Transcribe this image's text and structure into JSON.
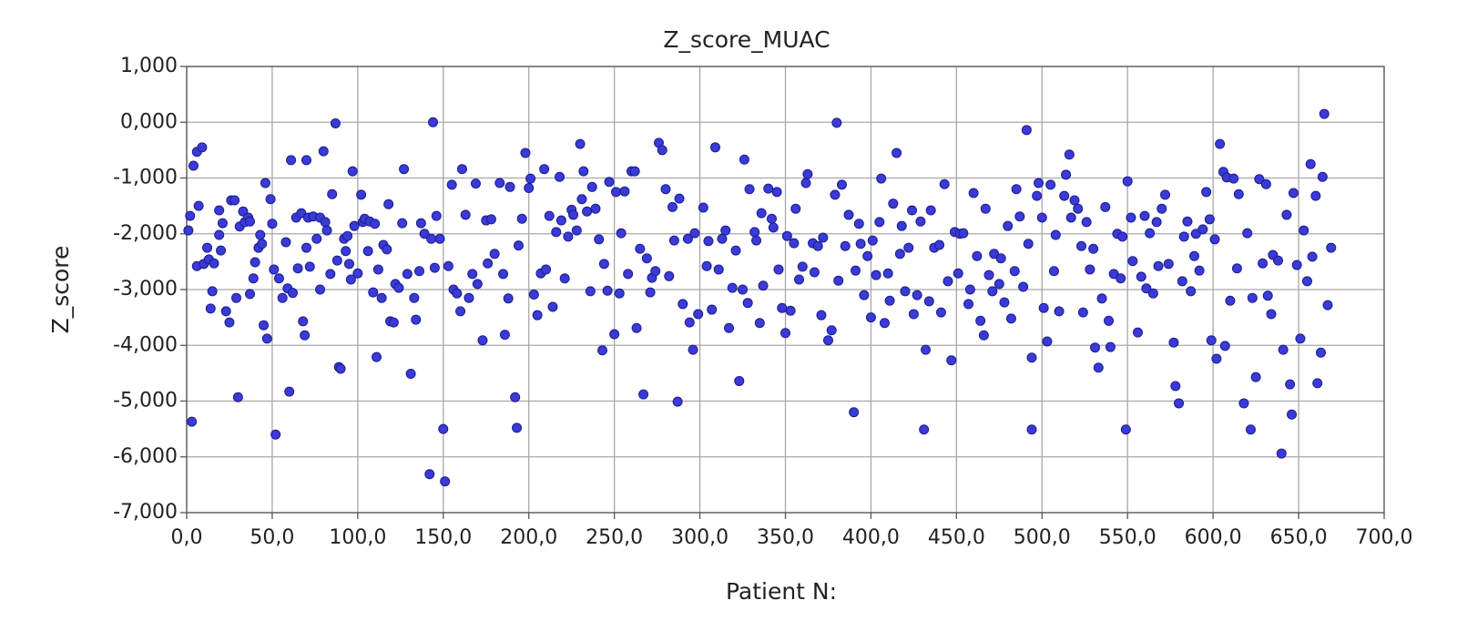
{
  "chart_data": {
    "type": "scatter",
    "title": "Z_score_MUAC",
    "x_label": "Patient N:",
    "y_label": "Z_score",
    "color": "#3a3ad6",
    "grid": true,
    "xlim": [
      0,
      700
    ],
    "ylim": [
      -7,
      1
    ],
    "xticks": [
      {
        "value": 0,
        "label": "0,0"
      },
      {
        "value": 50,
        "label": "50,0"
      },
      {
        "value": 100,
        "label": "100,0"
      },
      {
        "value": 150,
        "label": "150,0"
      },
      {
        "value": 200,
        "label": "200,0"
      },
      {
        "value": 250,
        "label": "250,0"
      },
      {
        "value": 300,
        "label": "300,0"
      },
      {
        "value": 350,
        "label": "350,0"
      },
      {
        "value": 400,
        "label": "400,0"
      },
      {
        "value": 450,
        "label": "450,0"
      },
      {
        "value": 500,
        "label": "500,0"
      },
      {
        "value": 550,
        "label": "550,0"
      },
      {
        "value": 600,
        "label": "600,0"
      },
      {
        "value": 650,
        "label": "650,0"
      },
      {
        "value": 700,
        "label": "700,0"
      }
    ],
    "yticks": [
      {
        "value": 1,
        "label": "1,000"
      },
      {
        "value": 0,
        "label": "0,000"
      },
      {
        "value": -1,
        "label": "-1,000"
      },
      {
        "value": -2,
        "label": "-2,000"
      },
      {
        "value": -3,
        "label": "-3,000"
      },
      {
        "value": -4,
        "label": "-4,000"
      },
      {
        "value": -5,
        "label": "-5,000"
      },
      {
        "value": -6,
        "label": "-6,000"
      },
      {
        "value": -7,
        "label": "-7,000"
      }
    ],
    "x": [
      3,
      4,
      6,
      9,
      1,
      2,
      7,
      6,
      10,
      12,
      13,
      14,
      15,
      16,
      19,
      19,
      21,
      20,
      23,
      26,
      25,
      28,
      29,
      30,
      31,
      33,
      34,
      36,
      37,
      37,
      39,
      40,
      42,
      43,
      44,
      45,
      46,
      47,
      49,
      50,
      51,
      52,
      54,
      56,
      58,
      59,
      60,
      61,
      62,
      64,
      65,
      67,
      68,
      69,
      70,
      70,
      71,
      72,
      74,
      76,
      78,
      78,
      80,
      81,
      82,
      84,
      85,
      87,
      88,
      89,
      90,
      92,
      93,
      94,
      95,
      96,
      97,
      98,
      100,
      102,
      103,
      104,
      106,
      107,
      109,
      110,
      111,
      112,
      114,
      115,
      117,
      118,
      119,
      121,
      122,
      124,
      126,
      127,
      129,
      131,
      133,
      134,
      136,
      137,
      139,
      142,
      143,
      144,
      145,
      146,
      148,
      150,
      151,
      153,
      155,
      156,
      158,
      160,
      161,
      163,
      165,
      167,
      169,
      170,
      173,
      175,
      176,
      178,
      180,
      183,
      185,
      186,
      188,
      189,
      192,
      193,
      194,
      196,
      198,
      200,
      201,
      203,
      205,
      207,
      209,
      210,
      212,
      214,
      216,
      218,
      219,
      221,
      223,
      225,
      226,
      228,
      230,
      231,
      232,
      234,
      236,
      237,
      239,
      241,
      243,
      244,
      246,
      247,
      250,
      251,
      253,
      254,
      256,
      258,
      260,
      262,
      263,
      265,
      267,
      269,
      271,
      272,
      274,
      276,
      278,
      280,
      282,
      284,
      285,
      287,
      288,
      290,
      293,
      294,
      296,
      297,
      299,
      302,
      304,
      305,
      307,
      309,
      311,
      313,
      315,
      317,
      319,
      321,
      323,
      325,
      326,
      328,
      329,
      332,
      333,
      335,
      336,
      337,
      340,
      342,
      343,
      345,
      346,
      348,
      350,
      351,
      353,
      355,
      356,
      358,
      360,
      362,
      363,
      366,
      367,
      369,
      371,
      372,
      375,
      377,
      379,
      380,
      381,
      383,
      385,
      387,
      390,
      391,
      393,
      394,
      396,
      398,
      400,
      401,
      403,
      405,
      406,
      408,
      410,
      411,
      413,
      415,
      417,
      418,
      420,
      422,
      424,
      425,
      427,
      429,
      431,
      432,
      434,
      435,
      437,
      440,
      441,
      443,
      445,
      447,
      449,
      451,
      452,
      454,
      457,
      458,
      460,
      462,
      464,
      466,
      467,
      469,
      471,
      472,
      475,
      476,
      478,
      480,
      482,
      484,
      485,
      487,
      489,
      491,
      492,
      494,
      494,
      497,
      498,
      500,
      501,
      503,
      505,
      507,
      508,
      510,
      513,
      514,
      516,
      517,
      519,
      521,
      523,
      524,
      526,
      528,
      530,
      531,
      533,
      535,
      537,
      539,
      540,
      542,
      544,
      546,
      547,
      549,
      550,
      552,
      553,
      556,
      558,
      560,
      561,
      563,
      565,
      567,
      568,
      570,
      572,
      574,
      577,
      578,
      580,
      582,
      583,
      585,
      587,
      589,
      590,
      592,
      594,
      596,
      598,
      599,
      601,
      602,
      604,
      606,
      607,
      608,
      610,
      612,
      614,
      615,
      618,
      620,
      622,
      623,
      625,
      627,
      629,
      631,
      632,
      634,
      635,
      638,
      640,
      641,
      643,
      645,
      646,
      647,
      649,
      651,
      653,
      655,
      657,
      658,
      660,
      661,
      663,
      664,
      665,
      667,
      669
    ],
    "values": [
      -5.37,
      -0.78,
      -0.53,
      -0.45,
      -1.94,
      -1.68,
      -1.5,
      -2.58,
      -2.54,
      -2.25,
      -2.46,
      -3.34,
      -3.03,
      -2.53,
      -2.02,
      -1.58,
      -1.81,
      -2.3,
      -3.39,
      -1.4,
      -3.59,
      -1.4,
      -3.15,
      -4.93,
      -1.87,
      -1.6,
      -1.79,
      -1.71,
      -1.78,
      -3.08,
      -2.8,
      -2.51,
      -2.25,
      -2.02,
      -2.18,
      -3.64,
      -1.09,
      -3.88,
      -1.38,
      -1.82,
      -2.64,
      -5.6,
      -2.8,
      -3.15,
      -2.15,
      -2.98,
      -4.83,
      -0.68,
      -3.06,
      -1.71,
      -2.62,
      -1.63,
      -3.57,
      -3.82,
      -0.68,
      -2.25,
      -1.71,
      -2.59,
      -1.69,
      -2.09,
      -1.71,
      -3.0,
      -0.52,
      -1.79,
      -1.94,
      -2.72,
      -1.29,
      -0.02,
      -2.48,
      -4.39,
      -4.42,
      -2.09,
      -2.31,
      -2.04,
      -2.54,
      -2.82,
      -0.88,
      -1.86,
      -2.71,
      -1.3,
      -1.79,
      -1.73,
      -2.31,
      -1.78,
      -3.05,
      -1.82,
      -4.21,
      -2.64,
      -3.15,
      -2.2,
      -2.28,
      -1.47,
      -3.57,
      -3.59,
      -2.9,
      -2.97,
      -1.81,
      -0.84,
      -2.72,
      -4.51,
      -3.15,
      -3.54,
      -2.67,
      -1.81,
      -2.0,
      -6.31,
      -2.09,
      0.0,
      -2.61,
      -1.68,
      -2.09,
      -5.5,
      -6.44,
      -2.58,
      -1.12,
      -3.0,
      -3.07,
      -3.39,
      -0.84,
      -1.66,
      -3.15,
      -2.72,
      -1.1,
      -2.9,
      -3.91,
      -1.76,
      -2.53,
      -1.74,
      -2.36,
      -1.09,
      -2.72,
      -3.81,
      -3.16,
      -1.16,
      -4.93,
      -5.48,
      -2.21,
      -1.73,
      -0.55,
      -1.18,
      -1.01,
      -3.09,
      -3.46,
      -2.71,
      -0.84,
      -2.64,
      -1.68,
      -3.31,
      -1.97,
      -0.98,
      -1.76,
      -2.8,
      -2.05,
      -1.57,
      -1.66,
      -1.94,
      -0.39,
      -1.38,
      -0.88,
      -1.6,
      -3.03,
      -1.16,
      -1.55,
      -2.1,
      -4.09,
      -2.54,
      -3.02,
      -1.07,
      -3.8,
      -1.25,
      -3.07,
      -1.99,
      -1.24,
      -2.72,
      -0.88,
      -0.88,
      -3.69,
      -2.27,
      -4.88,
      -2.44,
      -3.05,
      -2.79,
      -2.67,
      -0.37,
      -0.5,
      -1.2,
      -2.76,
      -1.52,
      -2.12,
      -5.01,
      -1.37,
      -3.26,
      -2.09,
      -3.59,
      -4.08,
      -1.99,
      -3.44,
      -1.53,
      -2.58,
      -2.13,
      -3.36,
      -0.45,
      -2.64,
      -2.09,
      -1.94,
      -3.69,
      -2.97,
      -2.3,
      -4.64,
      -3.0,
      -0.67,
      -3.24,
      -1.2,
      -1.97,
      -2.12,
      -3.6,
      -1.63,
      -2.93,
      -1.19,
      -1.73,
      -1.89,
      -1.25,
      -2.64,
      -3.33,
      -3.78,
      -2.04,
      -3.38,
      -2.17,
      -1.55,
      -2.82,
      -2.59,
      -1.09,
      -0.93,
      -2.17,
      -2.69,
      -2.22,
      -3.46,
      -2.07,
      -3.91,
      -3.73,
      -1.3,
      -0.01,
      -2.84,
      -1.12,
      -2.22,
      -1.66,
      -5.2,
      -2.66,
      -1.82,
      -2.18,
      -3.1,
      -2.4,
      -3.5,
      -2.12,
      -2.74,
      -1.79,
      -1.01,
      -3.6,
      -2.71,
      -3.2,
      -1.46,
      -0.55,
      -2.36,
      -1.86,
      -3.03,
      -2.25,
      -1.58,
      -3.44,
      -3.1,
      -1.78,
      -5.51,
      -4.08,
      -3.21,
      -1.58,
      -2.25,
      -2.2,
      -3.41,
      -1.11,
      -2.85,
      -4.27,
      -1.97,
      -2.71,
      -2.0,
      -1.99,
      -3.26,
      -3.0,
      -1.27,
      -2.4,
      -3.56,
      -3.82,
      -1.55,
      -2.74,
      -3.03,
      -2.36,
      -2.9,
      -2.44,
      -3.23,
      -1.86,
      -3.52,
      -2.67,
      -1.2,
      -1.69,
      -2.95,
      -0.14,
      -2.18,
      -4.22,
      -5.51,
      -1.32,
      -1.09,
      -1.71,
      -3.33,
      -3.93,
      -1.12,
      -2.67,
      -2.02,
      -3.39,
      -1.32,
      -0.94,
      -0.58,
      -1.71,
      -1.4,
      -1.55,
      -2.22,
      -3.41,
      -1.79,
      -2.64,
      -2.27,
      -4.04,
      -4.4,
      -3.16,
      -1.52,
      -3.56,
      -4.03,
      -2.72,
      -2.0,
      -2.8,
      -2.05,
      -5.51,
      -1.06,
      -1.71,
      -2.49,
      -3.77,
      -2.77,
      -1.68,
      -2.98,
      -1.99,
      -3.07,
      -1.79,
      -2.58,
      -1.55,
      -1.3,
      -2.54,
      -3.95,
      -4.73,
      -5.04,
      -2.85,
      -2.05,
      -1.78,
      -3.03,
      -2.4,
      -2.0,
      -2.66,
      -1.92,
      -1.25,
      -1.74,
      -3.91,
      -2.1,
      -4.24,
      -0.39,
      -0.89,
      -4.01,
      -0.99,
      -3.2,
      -1.01,
      -2.62,
      -1.29,
      -5.04,
      -1.99,
      -5.51,
      -3.15,
      -4.57,
      -1.02,
      -2.53,
      -1.11,
      -3.11,
      -3.44,
      -2.38,
      -2.48,
      -5.94,
      -4.08,
      -1.66,
      -4.7,
      -5.24,
      -1.27,
      -2.56,
      -3.88,
      -1.94,
      -2.85,
      -0.75,
      -2.41,
      -1.32,
      -4.68,
      -4.13,
      -0.98,
      0.15,
      -3.28,
      -2.25
    ]
  }
}
